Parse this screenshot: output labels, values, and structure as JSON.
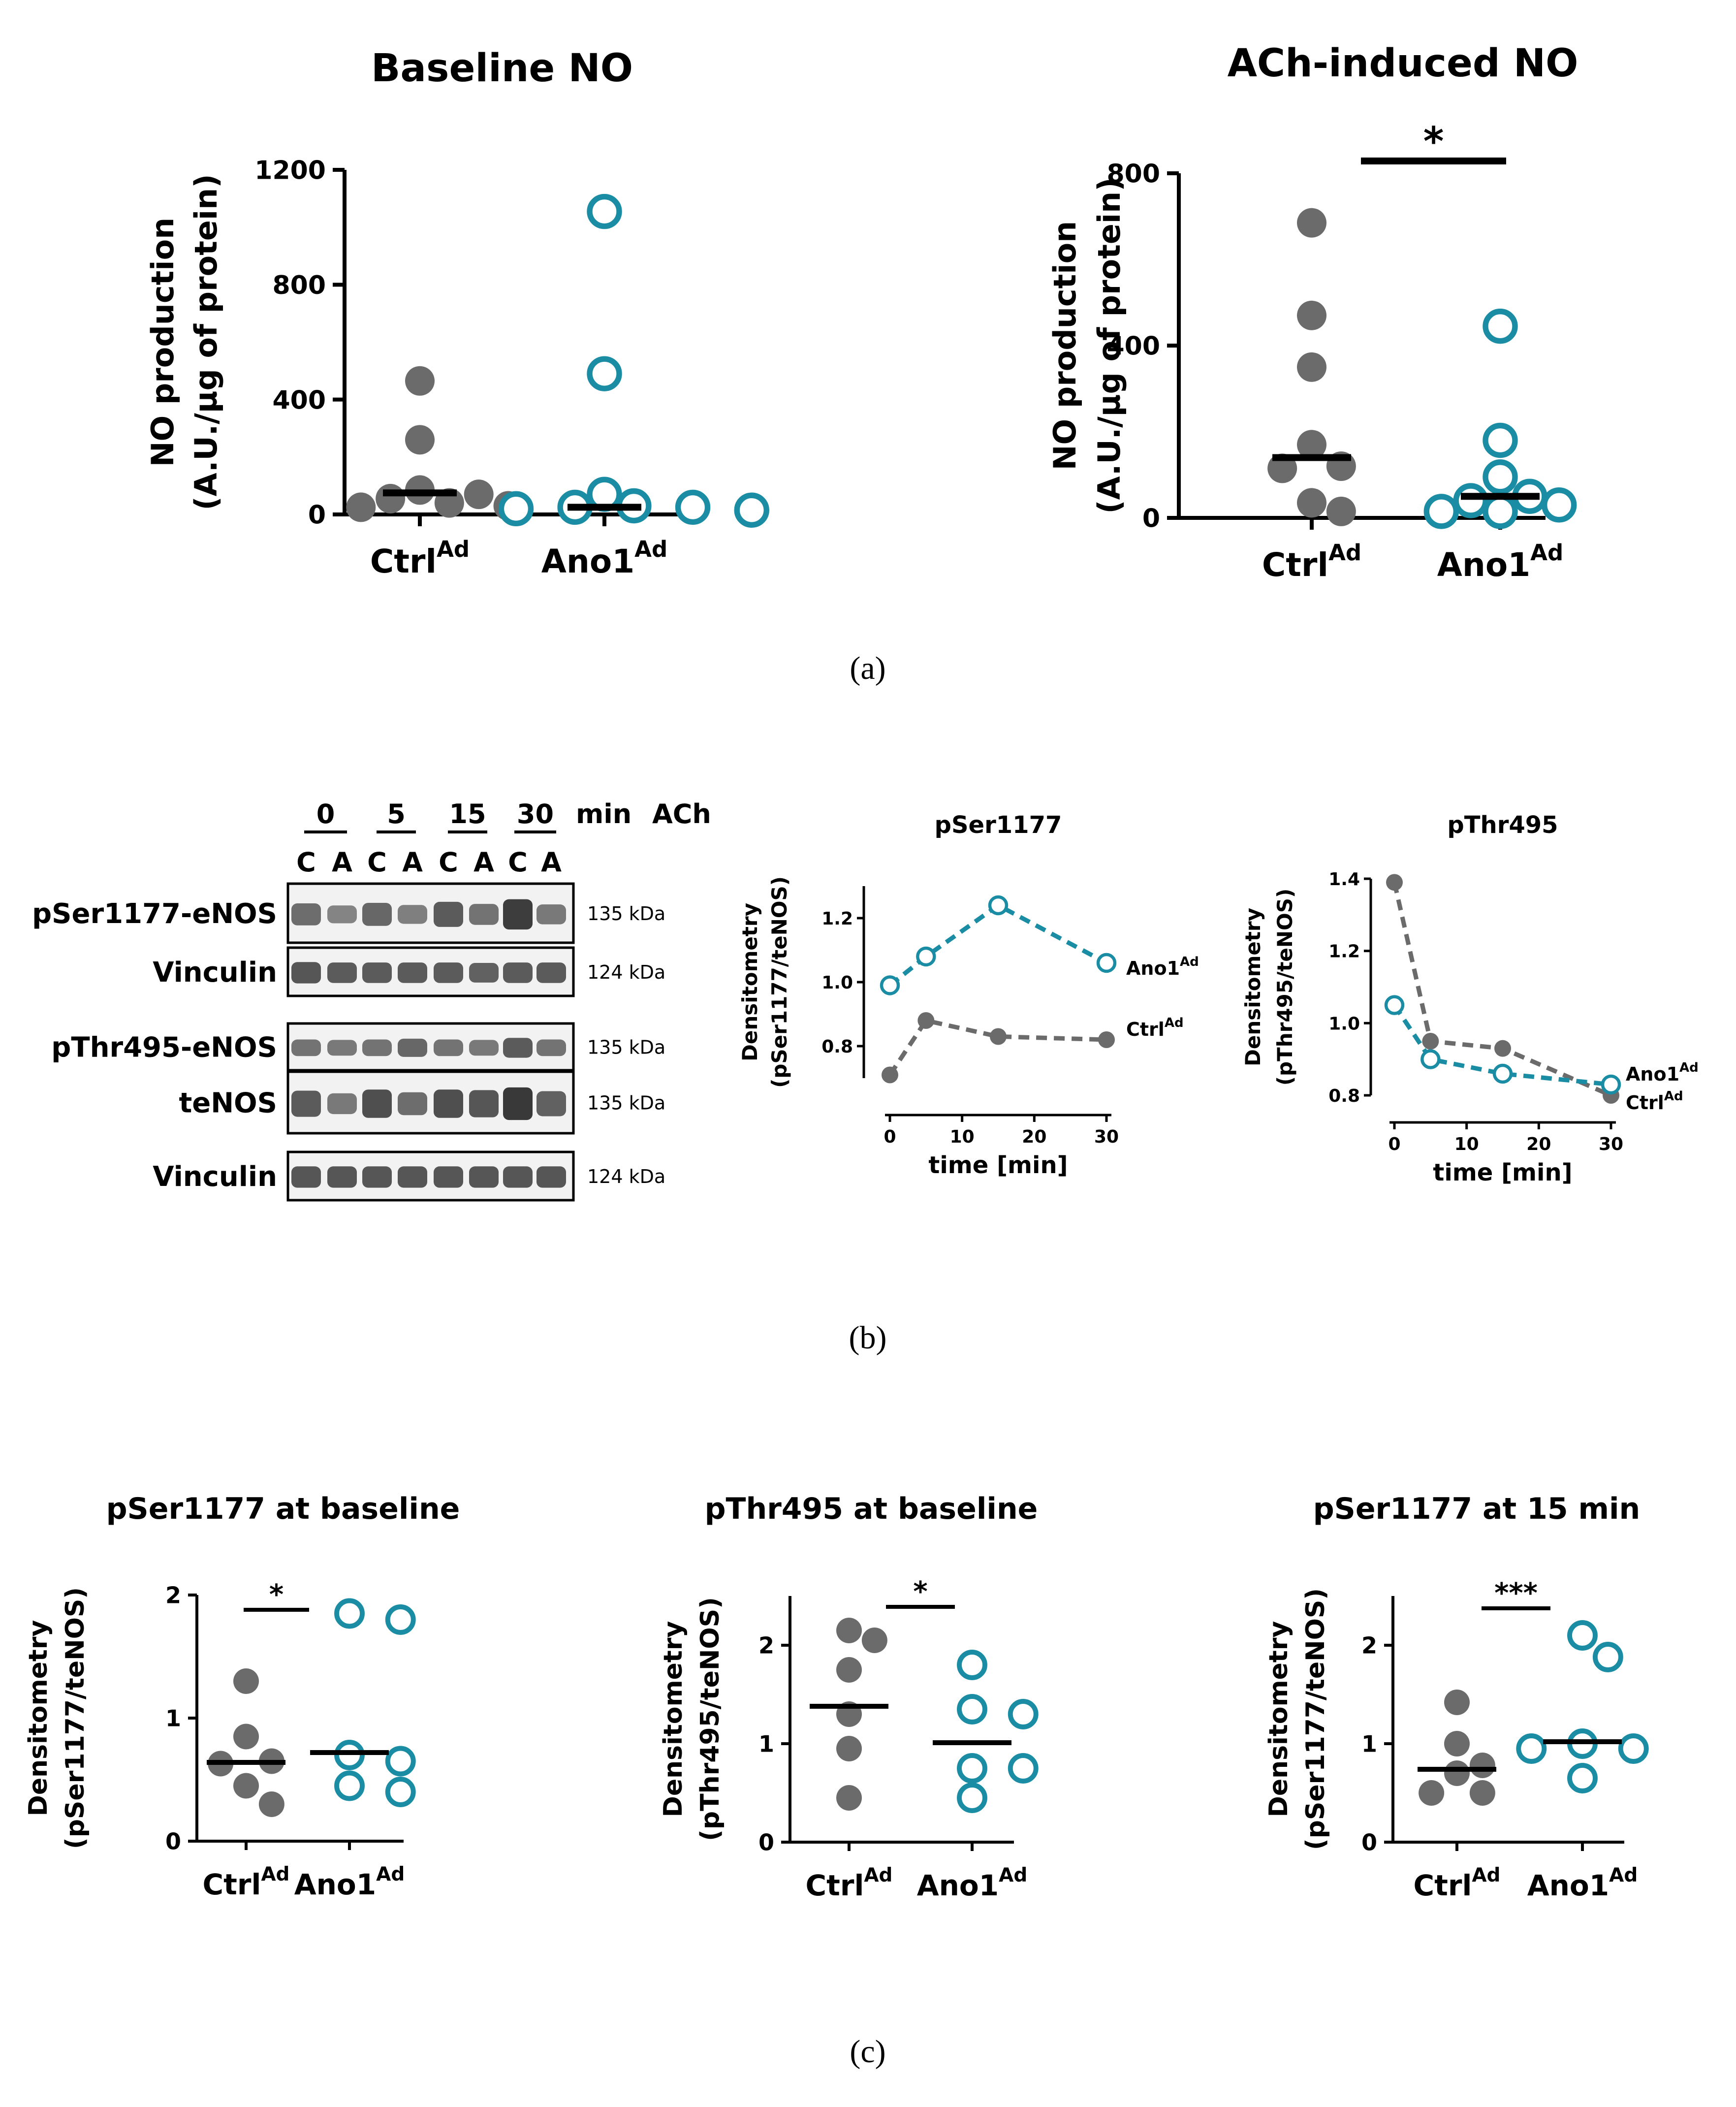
{
  "colors": {
    "ctrl": "#6b6b6b",
    "ano1": "#1a8ca3",
    "axis": "#000000",
    "blot_bg": "#f2f2f2",
    "blot_band": "#2e2e2e"
  },
  "captions": {
    "a": "(a)",
    "b": "(b)",
    "c": "(c)"
  },
  "chart_data": [
    {
      "id": "baseline-no",
      "type": "scatter",
      "title": "Baseline NO",
      "ylabel_line1": "NO production",
      "ylabel_line2": "(A.U./µg of protein)",
      "ylim": [
        0,
        1200
      ],
      "yticks": [
        0,
        400,
        800,
        1200
      ],
      "groups": [
        {
          "name": "Ctrl",
          "sup": "Ad",
          "filled": true,
          "median": 75,
          "values": [
            465,
            260,
            85,
            70,
            55,
            40,
            30,
            25
          ]
        },
        {
          "name": "Ano1",
          "sup": "Ad",
          "filled": false,
          "median": 25,
          "values": [
            1055,
            490,
            70,
            30,
            25,
            25,
            20,
            15
          ]
        }
      ]
    },
    {
      "id": "ach-no",
      "type": "scatter",
      "title": "ACh-induced NO",
      "ylabel_line1": "NO production",
      "ylabel_line2": "(A.U./µg of protein)",
      "ylim": [
        0,
        800
      ],
      "yticks": [
        0,
        400,
        800
      ],
      "significance": "*",
      "groups": [
        {
          "name": "Ctrl",
          "sup": "Ad",
          "filled": true,
          "median": 140,
          "values": [
            685,
            470,
            350,
            170,
            120,
            115,
            35,
            15
          ]
        },
        {
          "name": "Ano1",
          "sup": "Ad",
          "filled": false,
          "median": 50,
          "values": [
            445,
            180,
            95,
            50,
            40,
            30,
            15,
            15
          ]
        }
      ]
    },
    {
      "id": "pser1177-time",
      "type": "line",
      "title": "pSer1177",
      "ylabel_line1": "Densitometry",
      "ylabel_line2": "(pSer1177/teNOS)",
      "xlabel": "time [min]",
      "xlim": [
        0,
        30
      ],
      "xticks": [
        0,
        10,
        20,
        30
      ],
      "ylim": [
        0.7,
        1.3
      ],
      "yticks": [
        0.8,
        1.0,
        1.2
      ],
      "series": [
        {
          "name": "Ano1",
          "sup": "Ad",
          "filled": false,
          "x": [
            0,
            5,
            15,
            30
          ],
          "y": [
            0.99,
            1.08,
            1.24,
            1.06
          ]
        },
        {
          "name": "Ctrl",
          "sup": "Ad",
          "filled": true,
          "x": [
            0,
            5,
            15,
            30
          ],
          "y": [
            0.71,
            0.88,
            0.83,
            0.82
          ]
        }
      ]
    },
    {
      "id": "pthr495-time",
      "type": "line",
      "title": "pThr495",
      "ylabel_line1": "Densitometry",
      "ylabel_line2": "(pThr495/teNOS)",
      "xlabel": "time [min]",
      "xlim": [
        0,
        30
      ],
      "xticks": [
        0,
        10,
        20,
        30
      ],
      "ylim": [
        0.8,
        1.4
      ],
      "yticks": [
        0.8,
        1.0,
        1.2,
        1.4
      ],
      "series": [
        {
          "name": "Ano1",
          "sup": "Ad",
          "filled": false,
          "x": [
            0,
            5,
            15,
            30
          ],
          "y": [
            1.05,
            0.9,
            0.86,
            0.83
          ]
        },
        {
          "name": "Ctrl",
          "sup": "Ad",
          "filled": true,
          "x": [
            0,
            5,
            15,
            30
          ],
          "y": [
            1.39,
            0.95,
            0.93,
            0.8
          ]
        }
      ]
    },
    {
      "id": "pser1177-baseline",
      "type": "scatter",
      "title": "pSer1177 at baseline",
      "ylabel_line1": "Densitometry",
      "ylabel_line2": "(pSer1177/teNOS)",
      "ylim": [
        0,
        2
      ],
      "yticks": [
        0,
        1,
        2
      ],
      "significance": "*",
      "groups": [
        {
          "name": "Ctrl",
          "sup": "Ad",
          "filled": true,
          "median": 0.64,
          "values": [
            1.3,
            0.85,
            0.65,
            0.63,
            0.45,
            0.3
          ]
        },
        {
          "name": "Ano1",
          "sup": "Ad",
          "filled": false,
          "median": 0.72,
          "values": [
            1.85,
            1.8,
            0.7,
            0.65,
            0.45,
            0.4
          ]
        }
      ]
    },
    {
      "id": "pthr495-baseline",
      "type": "scatter",
      "title": "pThr495 at baseline",
      "ylabel_line1": "Densitometry",
      "ylabel_line2": "(pThr495/teNOS)",
      "ylim": [
        0,
        2.5
      ],
      "yticks": [
        0,
        1,
        2
      ],
      "significance": "*",
      "groups": [
        {
          "name": "Ctrl",
          "sup": "Ad",
          "filled": true,
          "median": 1.38,
          "values": [
            2.15,
            2.05,
            1.75,
            1.3,
            0.95,
            0.45
          ]
        },
        {
          "name": "Ano1",
          "sup": "Ad",
          "filled": false,
          "median": 1.01,
          "values": [
            1.8,
            1.35,
            1.3,
            0.75,
            0.75,
            0.45
          ]
        }
      ]
    },
    {
      "id": "pser1177-15min",
      "type": "scatter",
      "title": "pSer1177 at 15 min",
      "ylabel_line1": "Densitometry",
      "ylabel_line2": "(pSer1177/teNOS)",
      "ylim": [
        0,
        2.5
      ],
      "yticks": [
        0,
        1,
        2
      ],
      "significance": "***",
      "groups": [
        {
          "name": "Ctrl",
          "sup": "Ad",
          "filled": true,
          "median": 0.74,
          "values": [
            1.42,
            1.0,
            0.78,
            0.7,
            0.5,
            0.5
          ]
        },
        {
          "name": "Ano1",
          "sup": "Ad",
          "filled": false,
          "median": 1.02,
          "values": [
            2.1,
            1.88,
            1.0,
            0.95,
            0.95,
            0.65
          ]
        }
      ]
    }
  ],
  "western_blot": {
    "time_groups": [
      "0",
      "5",
      "15",
      "30"
    ],
    "time_unit": "min",
    "treatment": "ACh",
    "lane_labels": [
      "C",
      "A",
      "C",
      "A",
      "C",
      "A",
      "C",
      "A"
    ],
    "rows": [
      {
        "label": "pSer1177-eNOS",
        "mw": "135 kDa",
        "intensity": [
          0.55,
          0.35,
          0.6,
          0.4,
          0.7,
          0.5,
          0.95,
          0.45
        ]
      },
      {
        "label": "Vinculin",
        "mw": "124 kDa",
        "intensity": [
          0.75,
          0.7,
          0.7,
          0.7,
          0.7,
          0.65,
          0.7,
          0.7
        ]
      },
      {
        "label": "pThr495-eNOS",
        "mw": "135 kDa",
        "intensity": [
          0.5,
          0.45,
          0.5,
          0.6,
          0.5,
          0.45,
          0.7,
          0.5
        ]
      },
      {
        "label": "teNOS",
        "mw": "135 kDa",
        "intensity": [
          0.7,
          0.45,
          0.8,
          0.55,
          0.8,
          0.75,
          1.0,
          0.65
        ]
      },
      {
        "label": "Vinculin",
        "mw": "124 kDa",
        "intensity": [
          0.75,
          0.75,
          0.75,
          0.75,
          0.75,
          0.75,
          0.75,
          0.75
        ]
      }
    ]
  }
}
